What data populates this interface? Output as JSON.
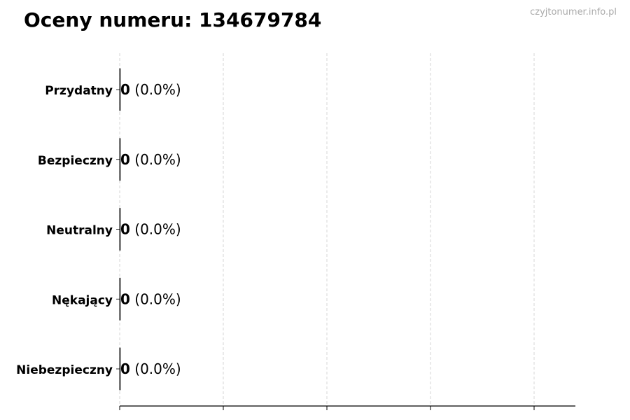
{
  "chart_data": {
    "type": "bar",
    "orientation": "horizontal",
    "title": "Oceny numeru: 134679784",
    "categories": [
      "Przydatny",
      "Bezpieczny",
      "Neutralny",
      "Nękający",
      "Niebezpieczny"
    ],
    "values": [
      0,
      0,
      0,
      0,
      0
    ],
    "value_labels": [
      "0",
      "0",
      "0",
      "0",
      "0"
    ],
    "percent_labels": [
      "(0.0%)",
      "(0.0%)",
      "(0.0%)",
      "(0.0%)",
      "(0.0%)"
    ],
    "xlabel": "",
    "ylabel": "",
    "grid": "x, dashed",
    "x_tick_labels_shown": false
  },
  "watermark": "czyjtonumer.info.pl"
}
